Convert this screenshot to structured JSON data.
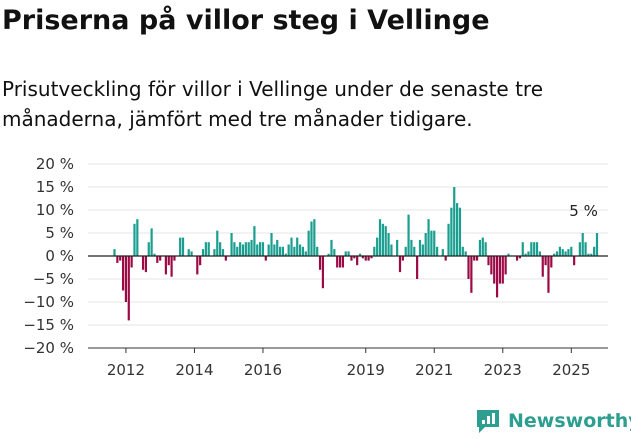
{
  "header": {
    "title": "Priserna på villor steg i Vellinge",
    "subtitle": "Prisutveckling för villor i Vellinge under de senaste tre månaderna, jämfört med tre månader tidigare."
  },
  "brand": {
    "name": "Newsworthy",
    "icon": "newsworthy-logo-icon"
  },
  "colors": {
    "positive": "#1a9e8f",
    "negative": "#9c0a45",
    "zero_line": "#222222",
    "grid": "#e6e6e6"
  },
  "chart_data": {
    "type": "bar",
    "title": "Priserna på villor steg i Vellinge",
    "xlabel": "",
    "ylabel": "",
    "ylim": [
      -20,
      20
    ],
    "y_ticks": [
      20,
      15,
      10,
      5,
      0,
      -5,
      -10,
      -15,
      -20
    ],
    "y_tick_labels": [
      "20 %",
      "15 %",
      "10 %",
      "5 %",
      "0 %",
      "−5 %",
      "−10 %",
      "−15 %",
      "−20 %"
    ],
    "x_ticks": [
      {
        "label": "2012",
        "index": 4
      },
      {
        "label": "2014",
        "index": 28
      },
      {
        "label": "2016",
        "index": 52
      },
      {
        "label": "2019",
        "index": 88
      },
      {
        "label": "2021",
        "index": 112
      },
      {
        "label": "2023",
        "index": 136
      },
      {
        "label": "2025",
        "index": 160
      }
    ],
    "annotation": {
      "text": "5 %",
      "index": 165,
      "value": 5
    },
    "values": [
      1.5,
      -1.5,
      -1,
      -7.5,
      -10,
      -14,
      -2.5,
      7,
      8,
      0,
      -3,
      -3.5,
      3,
      6,
      0.5,
      -1.5,
      -1,
      0,
      -4,
      -2,
      -4.5,
      -1,
      0,
      4,
      4,
      0,
      1.5,
      1,
      0,
      -4,
      -2,
      1.5,
      3,
      3,
      0,
      1.5,
      5.5,
      3,
      1.5,
      -1,
      0,
      5,
      3,
      2,
      3,
      2.5,
      3,
      3,
      3.5,
      6.5,
      2.5,
      3,
      3,
      -1,
      2.5,
      5,
      2.5,
      3.5,
      2,
      2,
      0.5,
      2.5,
      4,
      2,
      4,
      2.5,
      2,
      1,
      5.5,
      7.5,
      8,
      2,
      -3,
      -7,
      0,
      0.5,
      3.5,
      1.5,
      -2.5,
      -2.5,
      -2.5,
      1,
      1,
      -1,
      -0.5,
      -2,
      0.5,
      -0.5,
      -1,
      -1,
      -0.5,
      2,
      4,
      8,
      7,
      6.5,
      5,
      2.5,
      0,
      3.5,
      -3.5,
      -1,
      2,
      9,
      3.5,
      2,
      -5,
      3.5,
      2.5,
      5,
      8,
      5.5,
      5.5,
      2,
      0,
      1.5,
      -1,
      7,
      10.5,
      15,
      11.5,
      10.5,
      2,
      1,
      -5,
      -8,
      -1,
      -1,
      3.5,
      4,
      3,
      -2,
      -4,
      -6,
      -9,
      -6,
      -6,
      -4,
      0.5,
      0,
      0,
      -1,
      -0.5,
      3,
      0.5,
      1,
      3,
      3,
      3,
      1,
      -4.5,
      -2,
      -8,
      -2.5,
      0.5,
      1,
      2,
      1.5,
      1,
      1.5,
      2,
      -2,
      0,
      3,
      5,
      3,
      0.5,
      0.5,
      2,
      5
    ]
  }
}
